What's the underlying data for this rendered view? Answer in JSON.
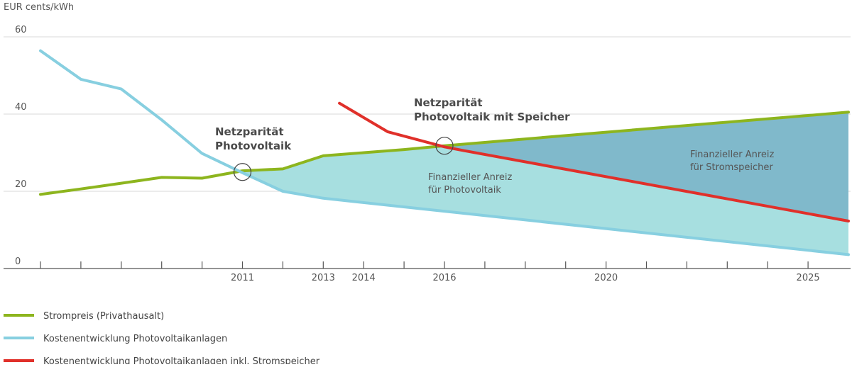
{
  "chart_data": {
    "type": "line",
    "ylabel": "EUR cents/kWh",
    "ylim": [
      0,
      60
    ],
    "xlim": [
      2006,
      2026
    ],
    "yticks": [
      0,
      20,
      40,
      60
    ],
    "xtick_years": [
      2006,
      2007,
      2008,
      2009,
      2010,
      2011,
      2012,
      2013,
      2014,
      2015,
      2016,
      2017,
      2018,
      2019,
      2020,
      2021,
      2022,
      2023,
      2024,
      2025
    ],
    "xtick_labels": [
      {
        "year": 2011,
        "label": "2011"
      },
      {
        "year": 2013,
        "label": "2013"
      },
      {
        "year": 2014,
        "label": "2014"
      },
      {
        "year": 2016,
        "label": "2016"
      },
      {
        "year": 2020,
        "label": "2020"
      },
      {
        "year": 2025,
        "label": "2025"
      }
    ],
    "gridlines": [
      20,
      40,
      60
    ],
    "series": [
      {
        "key": "strompreis",
        "name": "Strompreis (Privathausalt)",
        "color": "#8db51e",
        "points": [
          [
            2006,
            19.2
          ],
          [
            2007,
            20.6
          ],
          [
            2008,
            22.1
          ],
          [
            2009,
            23.6
          ],
          [
            2010,
            23.4
          ],
          [
            2011,
            25.3
          ],
          [
            2012,
            25.8
          ],
          [
            2013,
            29.2
          ],
          [
            2014,
            30.0
          ],
          [
            2015,
            30.8
          ],
          [
            2016,
            31.8
          ],
          [
            2020,
            35.3
          ],
          [
            2026,
            40.5
          ]
        ]
      },
      {
        "key": "pv_kosten",
        "name": "Kostenentwicklung Photovoltaikanlagen",
        "color": "#87cfe0",
        "points": [
          [
            2006,
            56.4
          ],
          [
            2007,
            49.0
          ],
          [
            2008,
            46.5
          ],
          [
            2009,
            38.5
          ],
          [
            2010,
            29.8
          ],
          [
            2011,
            24.8
          ],
          [
            2012,
            20.0
          ],
          [
            2013,
            18.2
          ],
          [
            2026,
            3.6
          ]
        ]
      },
      {
        "key": "pv_speicher",
        "name": "Kostenentwicklung Photovoltaikanlagen inkl. Stromspeicher",
        "color": "#e0302a",
        "points": [
          [
            2013.4,
            42.8
          ],
          [
            2014.6,
            35.4
          ],
          [
            2016,
            31.5
          ],
          [
            2016.5,
            30.5
          ],
          [
            2026,
            12.3
          ]
        ]
      }
    ],
    "regions": [
      {
        "key": "anreiz_pv",
        "label_lines": [
          "Finanzieller Anreiz",
          "für Photovoltaik"
        ],
        "color": "#a7dfe0"
      },
      {
        "key": "anreiz_speicher",
        "label_lines": [
          "Finanzieller Anreiz",
          "für Stromspeicher"
        ],
        "color": "#80b9cb"
      }
    ],
    "annotations": [
      {
        "key": "parity_pv",
        "lines": [
          "Netzparität",
          "Photovoltaik"
        ],
        "x": 2011,
        "y": 25.0
      },
      {
        "key": "parity_storage",
        "lines": [
          "Netzparität",
          "Photovoltaik mit Speicher"
        ],
        "x": 2016,
        "y": 31.8
      }
    ],
    "axis_color": "#555555",
    "grid_color": "#d9d9d9"
  }
}
